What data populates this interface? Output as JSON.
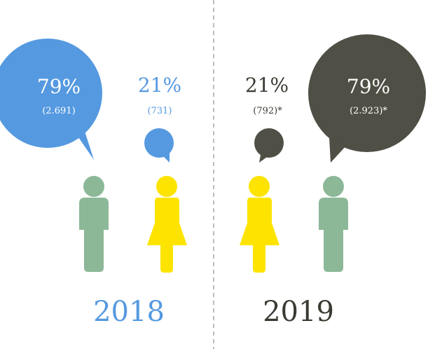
{
  "colors": {
    "blue": "#5599e0",
    "dark": "#4f4f45",
    "green": "#8cb898",
    "yellow": "#fde400",
    "divider": "#9a9a9a"
  },
  "chart_data": {
    "type": "pictogram",
    "groups": [
      {
        "year": "2018",
        "color": "blue",
        "men": {
          "percent_label": "79%",
          "count_label": "(2.691)",
          "percent": 79,
          "count": 2691
        },
        "women": {
          "percent_label": "21%",
          "count_label": "(731)",
          "percent": 21,
          "count": 731
        }
      },
      {
        "year": "2019",
        "color": "dark",
        "women": {
          "percent_label": "21%",
          "count_label": "(792)*",
          "percent": 21,
          "count": 792
        },
        "men": {
          "percent_label": "79%",
          "count_label": "(2.923)*",
          "percent": 79,
          "count": 2923
        }
      }
    ]
  }
}
